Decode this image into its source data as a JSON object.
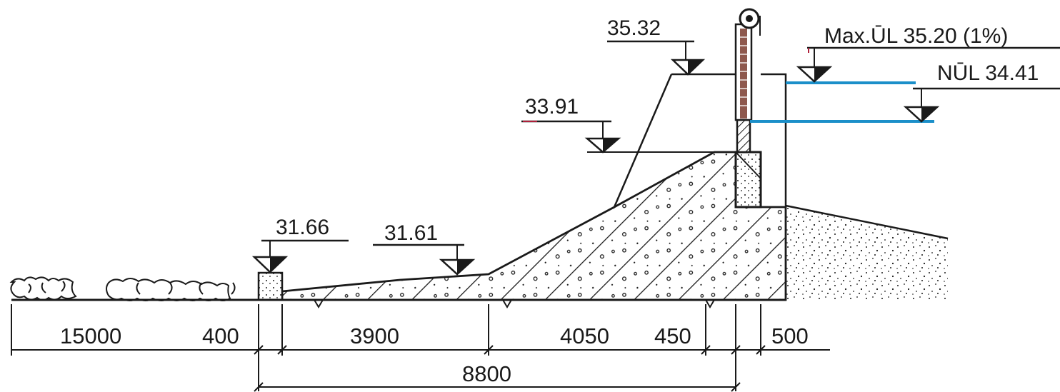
{
  "elevations": {
    "crest_top": "35.32",
    "max_ul": "Max.ŪL 35.20 (1%)",
    "nul": "NŪL 34.41",
    "berm": "33.91",
    "sill": "31.66",
    "apron_end": "31.61"
  },
  "dimensions": {
    "d1": "15000",
    "d2": "400",
    "d3": "3900",
    "d4": "4050",
    "d5": "450",
    "d6": "500",
    "total": "8800"
  },
  "colors": {
    "line": "#1a1a1a",
    "water": "#1b8fc9",
    "accent_red": "#b0203a",
    "gate_fill": "#7a3b2e"
  }
}
